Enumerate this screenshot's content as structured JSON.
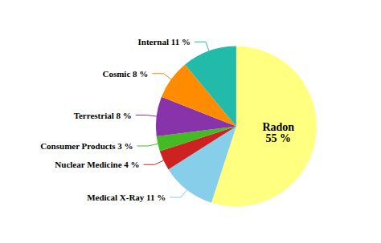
{
  "chart_data": {
    "type": "pie",
    "categories": [
      "Radon",
      "Medical X-Ray",
      "Nuclear Medicine",
      "Consumer Products",
      "Terrestrial",
      "Cosmic",
      "Internal"
    ],
    "values": [
      55,
      11,
      4,
      3,
      8,
      8,
      11
    ],
    "value_labels": [
      "Radon\n55 %",
      "Medical X-Ray 11 %",
      "Nuclear Medicine 4 %",
      "Consumer Products 3 %",
      "Terrestrial 8 %",
      "Cosmic 8 %",
      "Internal 11 %"
    ],
    "colors": [
      "#FFFF80",
      "#87CEEB",
      "#CC2222",
      "#44BB22",
      "#8833AA",
      "#FF8C00",
      "#22BBAA"
    ],
    "data_labels": true,
    "legend": false
  }
}
